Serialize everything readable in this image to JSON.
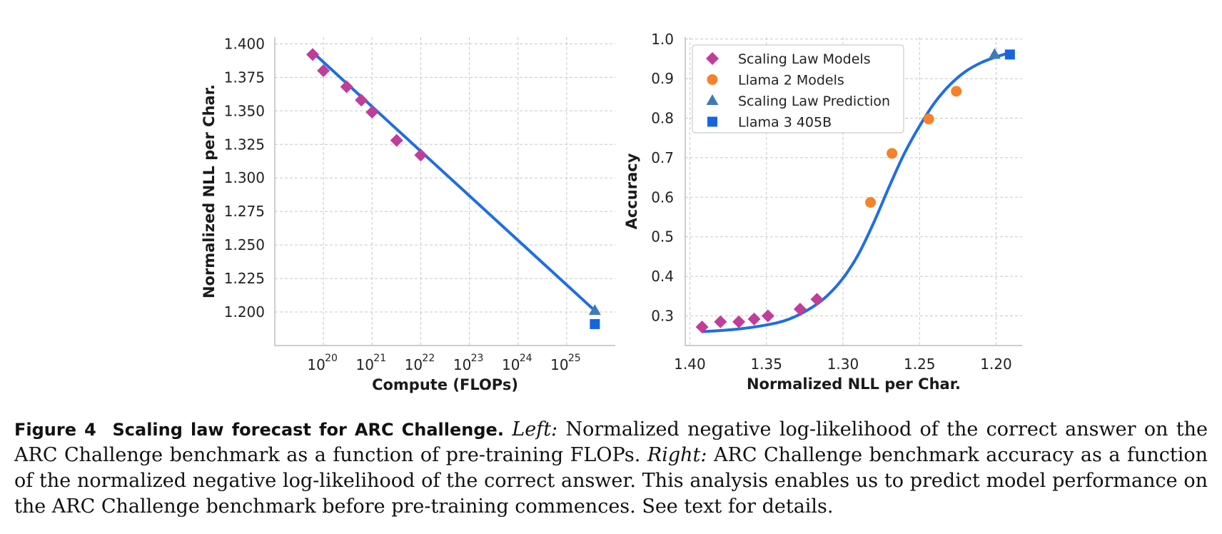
{
  "colors": {
    "fit": "#1f6ee0",
    "scaling_law_models": "#c03d9a",
    "llama2_models": "#f5822a",
    "scaling_law_prediction": "#3e7bb8",
    "llama3_405b": "#1565e0"
  },
  "chart_data": [
    {
      "type": "scatter",
      "xlabel": "Compute (FLOPs)",
      "ylabel": "Normalized NLL per Char.",
      "xscale": "log",
      "xlim": [
        1e+19,
        1e+26
      ],
      "ylim": [
        1.175,
        1.405
      ],
      "x_ticks": [
        {
          "base": "10",
          "exp": "20",
          "value": 1e+20
        },
        {
          "base": "10",
          "exp": "21",
          "value": 1e+21
        },
        {
          "base": "10",
          "exp": "22",
          "value": 1e+22
        },
        {
          "base": "10",
          "exp": "23",
          "value": 1e+23
        },
        {
          "base": "10",
          "exp": "24",
          "value": 1e+24
        },
        {
          "base": "10",
          "exp": "25",
          "value": 1e+25
        }
      ],
      "y_ticks": [
        "1.200",
        "1.225",
        "1.250",
        "1.275",
        "1.300",
        "1.325",
        "1.350",
        "1.375",
        "1.400"
      ],
      "grid": true,
      "series": [
        {
          "label": "Scaling Law Models",
          "marker": "diamond",
          "x": [
            6e+19,
            1e+20,
            3e+20,
            6e+20,
            1e+21,
            3.2e+21,
            1e+22
          ],
          "y": [
            1.392,
            1.38,
            1.368,
            1.358,
            1.349,
            1.328,
            1.317
          ]
        },
        {
          "label": "Scaling Law Prediction",
          "marker": "triangle",
          "x": [
            3.8e+25
          ],
          "y": [
            1.201
          ]
        },
        {
          "label": "Llama 3 405B",
          "marker": "square",
          "x": [
            3.8e+25
          ],
          "y": [
            1.191
          ]
        }
      ],
      "fit_line": {
        "x": [
          5.5e+19,
          3.8e+25
        ],
        "y": [
          1.395,
          1.201
        ]
      }
    },
    {
      "type": "scatter",
      "xlabel": "Normalized NLL per Char.",
      "ylabel": "Accuracy",
      "x_inverted": true,
      "xlim": [
        1.403,
        1.183
      ],
      "ylim": [
        0.225,
        1.005
      ],
      "x_ticks": [
        "1.40",
        "1.35",
        "1.30",
        "1.25",
        "1.20"
      ],
      "y_ticks": [
        "0.3",
        "0.4",
        "0.5",
        "0.6",
        "0.7",
        "0.8",
        "0.9",
        "1.0"
      ],
      "grid": true,
      "legend": {
        "position": "top-left",
        "entries": [
          "Scaling Law Models",
          "Llama 2 Models",
          "Scaling Law Prediction",
          "Llama 3 405B"
        ]
      },
      "series": [
        {
          "label": "Scaling Law Models",
          "marker": "diamond",
          "x": [
            1.392,
            1.38,
            1.368,
            1.358,
            1.349,
            1.328,
            1.317
          ],
          "y": [
            0.272,
            0.285,
            0.285,
            0.292,
            0.3,
            0.317,
            0.342
          ]
        },
        {
          "label": "Llama 2 Models",
          "marker": "circle",
          "x": [
            1.282,
            1.268,
            1.244,
            1.226
          ],
          "y": [
            0.587,
            0.711,
            0.798,
            0.868
          ]
        },
        {
          "label": "Scaling Law Prediction",
          "marker": "triangle",
          "x": [
            1.201
          ],
          "y": [
            0.961
          ]
        },
        {
          "label": "Llama 3 405B",
          "marker": "square",
          "x": [
            1.191
          ],
          "y": [
            0.961
          ]
        }
      ],
      "fit_curve": {
        "x": [
          1.392,
          1.37,
          1.35,
          1.335,
          1.32,
          1.31,
          1.3,
          1.29,
          1.28,
          1.27,
          1.26,
          1.25,
          1.24,
          1.23,
          1.22,
          1.21,
          1.2,
          1.19
        ],
        "y": [
          0.26,
          0.266,
          0.277,
          0.292,
          0.322,
          0.352,
          0.395,
          0.455,
          0.535,
          0.625,
          0.71,
          0.78,
          0.84,
          0.885,
          0.918,
          0.94,
          0.955,
          0.967
        ]
      }
    }
  ],
  "caption": {
    "fig_number": "Figure 4",
    "title": "Scaling law forecast for ARC Challenge.",
    "left_label": "Left:",
    "left_text": "Normalized negative log-likelihood of the correct answer on the ARC Challenge benchmark as a function of pre-training FLOPs.",
    "right_label": "Right:",
    "right_text": "ARC Challenge benchmark accuracy as a function of the normalized negative log-likelihood of the correct answer. This analysis enables us to predict model performance on the ARC Challenge benchmark before pre-training commences. See text for details."
  }
}
